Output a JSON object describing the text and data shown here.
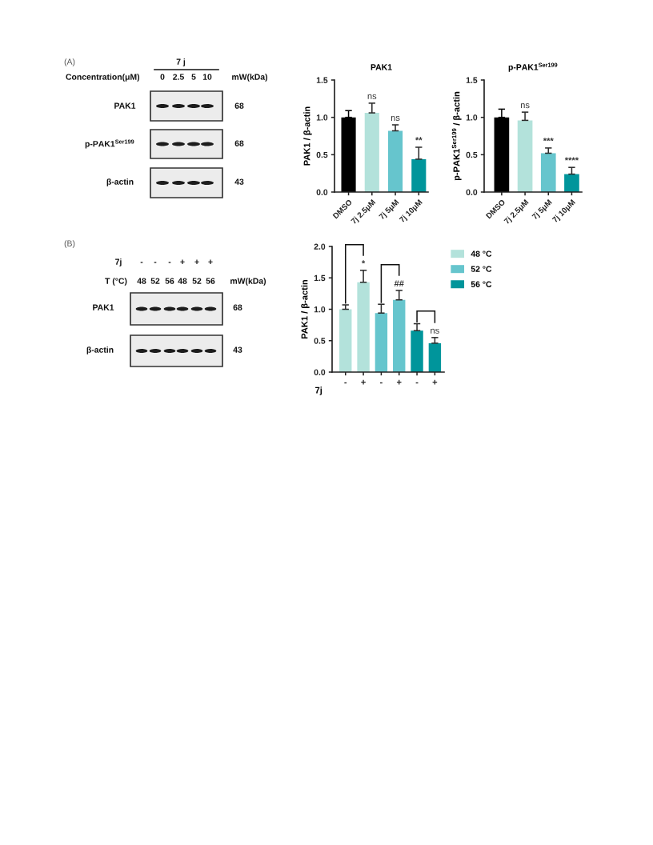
{
  "chart_data": [
    {
      "type": "other",
      "annotations": [
        "(A)",
        "7 j",
        "Concentration(μM)",
        "0",
        "2.5",
        "5",
        "10",
        "mW(kDa)",
        "PAK1",
        "68",
        "p-PAK1$^{Ser199}$",
        "68",
        "β-actin",
        "43"
      ]
    },
    {
      "type": "bar",
      "title": "PAK1",
      "ylabel": "PAK1 / β-actin",
      "categories": [
        "DMSO",
        "7j 2.5μM",
        "7j 5μM",
        "7j 10μM"
      ],
      "values": [
        1.0,
        1.06,
        0.82,
        0.44
      ],
      "colors": [
        "#000000",
        "#b3e2db",
        "#66c5cd",
        "#00959b"
      ],
      "errors": [
        [
          1.0,
          1.09
        ],
        [
          1.06,
          1.19
        ],
        [
          0.82,
          0.9
        ],
        [
          0.44,
          0.6
        ]
      ],
      "ylim": [
        0,
        1.5
      ],
      "yticks": [
        {
          "value": 0,
          "label": "0.0"
        },
        {
          "value": 0.5,
          "label": "0.5"
        },
        {
          "value": 1,
          "label": "1.0"
        },
        {
          "value": 1.5,
          "label": "1.5"
        }
      ],
      "annotations": [
        "ns",
        "ns",
        "**"
      ]
    },
    {
      "type": "bar",
      "title": "p-PAK1$^{Ser199}$",
      "ylabel": "p-PAK1$^{Ser199}$ / β-actin",
      "categories": [
        "DMSO",
        "7j 2.5μM",
        "7j 5μM",
        "7j 10μM"
      ],
      "values": [
        1.0,
        0.96,
        0.52,
        0.24
      ],
      "colors": [
        "#000000",
        "#b3e2db",
        "#66c5cd",
        "#00959b"
      ],
      "errors": [
        [
          1.0,
          1.11
        ],
        [
          0.96,
          1.07
        ],
        [
          0.52,
          0.59
        ],
        [
          0.24,
          0.33
        ]
      ],
      "ylim": [
        0,
        1.5
      ],
      "yticks": [
        {
          "value": 0,
          "label": "0.0"
        },
        {
          "value": 0.5,
          "label": "0.5"
        },
        {
          "value": 1,
          "label": "1.0"
        },
        {
          "value": 1.5,
          "label": "1.5"
        }
      ],
      "annotations": [
        "ns",
        "***",
        "****"
      ]
    },
    {
      "type": "other",
      "annotations": [
        "(B)",
        "7j",
        "-",
        "-",
        "-",
        "+",
        "+",
        "+",
        "T (°C)",
        "48",
        "52",
        "56",
        "48",
        "52",
        "56",
        "mW(kDa)",
        "PAK1",
        "68",
        "β-actin",
        "43"
      ]
    },
    {
      "type": "bar",
      "ylabel": "PAK1 / β-actin",
      "xlabel": "7j",
      "categories": [
        "-",
        "+",
        "-",
        "+",
        "-",
        "+"
      ],
      "series": [
        {
          "name": "48 °C",
          "color": "#b3e2db",
          "values": [
            1.0,
            1.43,
            null,
            null,
            null,
            null
          ],
          "errors": [
            [
              1.0,
              1.07
            ],
            [
              1.43,
              1.62
            ],
            null,
            null,
            null,
            null
          ]
        },
        {
          "name": "52 °C",
          "color": "#66c5cd",
          "values": [
            null,
            null,
            0.94,
            1.15,
            null,
            null
          ],
          "errors": [
            null,
            null,
            [
              0.94,
              1.08
            ],
            [
              1.15,
              1.3
            ],
            null,
            null
          ]
        },
        {
          "name": "56 °C",
          "color": "#00959b",
          "values": [
            null,
            null,
            null,
            null,
            0.66,
            0.46
          ],
          "errors": [
            null,
            null,
            null,
            null,
            [
              0.66,
              0.77
            ],
            [
              0.46,
              0.55
            ]
          ]
        }
      ],
      "ylim": [
        0,
        2.0
      ],
      "yticks": [
        {
          "value": 0,
          "label": "0.0"
        },
        {
          "value": 0.5,
          "label": "0.5"
        },
        {
          "value": 1,
          "label": "1.0"
        },
        {
          "value": 1.5,
          "label": "1.5"
        },
        {
          "value": 2,
          "label": "2.0"
        }
      ],
      "legend": "top right",
      "annotations": [
        "*",
        {
          "text": "##",
          "y": 1.15
        },
        "ns"
      ]
    }
  ]
}
